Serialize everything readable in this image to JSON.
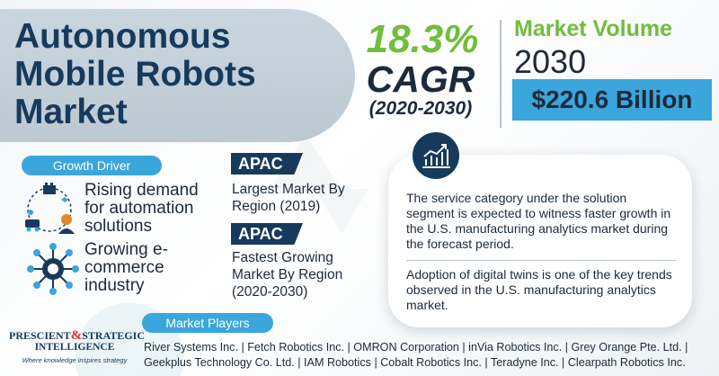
{
  "title": {
    "line1": "Autonomous",
    "line2": "Mobile Robots",
    "line3": "Market"
  },
  "cagr": {
    "percent": "18.3%",
    "label": "CAGR",
    "period": "(2020-2030)"
  },
  "market_volume": {
    "label": "Market Volume",
    "year": "2030",
    "value": "$220.6 Billion"
  },
  "growth_driver": {
    "heading": "Growth Driver",
    "items": [
      {
        "text": "Rising demand for automation solutions",
        "icon": "automation-icon"
      },
      {
        "text": "Growing e-commerce industry",
        "icon": "network-chip-icon"
      }
    ]
  },
  "regions": [
    {
      "tag": "APAC",
      "text": "Largest Market By Region (2019)"
    },
    {
      "tag": "APAC",
      "text": "Fastest Growing Market By Region (2020-2030)"
    }
  ],
  "insights": {
    "icon": "growth-chart-icon",
    "items": [
      "The service category under the solution segment is expected to witness faster growth in the U.S. manufacturing analytics market during the forecast period.",
      "Adoption of digital twins is one of the key trends observed in the U.S. manufacturing analytics market."
    ]
  },
  "market_players": {
    "heading": "Market Players",
    "line1": "River Systems Inc. | Fetch Robotics Inc. | OMRON Corporation | inVia Robotics Inc. | Grey Orange Pte. Ltd. |",
    "line2": "Geekplus Technology Co. Ltd. | IAM Robotics | Cobalt Robotics Inc. | Teradyne Inc. | Clearpath Robotics Inc."
  },
  "logo": {
    "word1": "PRESCIENT",
    "amp": "&",
    "word2": "STRATEGIC",
    "word3": "INTELLIGENCE",
    "tagline": "Where knowledge inspires strategy"
  },
  "colors": {
    "navy": "#173a5c",
    "green": "#6fbe3c",
    "blue": "#3aa6dc"
  }
}
